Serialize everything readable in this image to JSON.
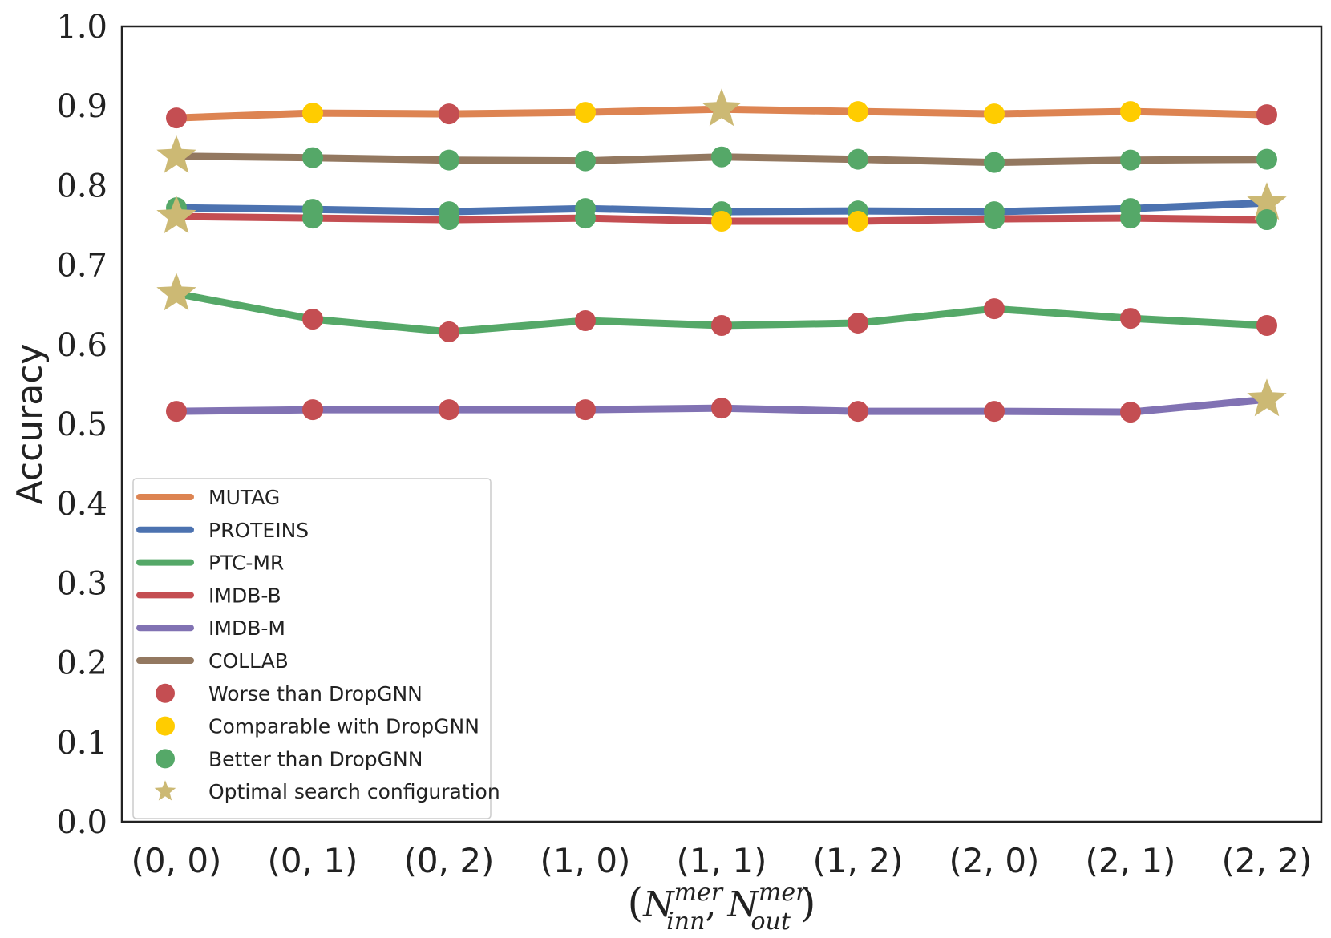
{
  "chart_data": {
    "type": "line",
    "title": "",
    "ylabel": "Accuracy",
    "xlabel": {
      "base": "N",
      "sub1": "inn",
      "sup1": "mer",
      "sub2": "out",
      "sup2": "mer",
      "text": "(N_inn^mer, N_out^mer)"
    },
    "ylim": [
      0.0,
      1.0
    ],
    "yticks": [
      "0.0",
      "0.1",
      "0.2",
      "0.3",
      "0.4",
      "0.5",
      "0.6",
      "0.7",
      "0.8",
      "0.9",
      "1.0"
    ],
    "categories": [
      "(0, 0)",
      "(0, 1)",
      "(0, 2)",
      "(1, 0)",
      "(1, 1)",
      "(1, 2)",
      "(2, 0)",
      "(2, 1)",
      "(2, 2)"
    ],
    "grid": false,
    "legend_position": "lower-left",
    "marker_legend": [
      {
        "label": "Worse than DropGNN",
        "marker": "circle",
        "color": "#c44e52"
      },
      {
        "label": "Comparable with DropGNN",
        "marker": "circle",
        "color": "#ffcc00"
      },
      {
        "label": "Better than DropGNN",
        "marker": "circle",
        "color": "#55a868"
      },
      {
        "label": "Optimal search configuration",
        "marker": "star",
        "color": "#ccb974"
      }
    ],
    "series": [
      {
        "name": "MUTAG",
        "color": "#dd8452",
        "values": [
          0.885,
          0.891,
          0.89,
          0.892,
          0.896,
          0.893,
          0.89,
          0.893,
          0.889
        ],
        "markers": [
          "worse",
          "comparable",
          "worse",
          "comparable",
          "optimal",
          "comparable",
          "comparable",
          "comparable",
          "worse"
        ]
      },
      {
        "name": "PROTEINS",
        "color": "#4c72b0",
        "values": [
          0.772,
          0.77,
          0.767,
          0.771,
          0.767,
          0.768,
          0.767,
          0.771,
          0.778
        ],
        "markers": [
          "better",
          "better",
          "better",
          "better",
          "better",
          "better",
          "better",
          "better",
          "optimal"
        ]
      },
      {
        "name": "PTC-MR",
        "color": "#55a868",
        "values": [
          0.664,
          0.632,
          0.616,
          0.63,
          0.624,
          0.627,
          0.645,
          0.633,
          0.624
        ],
        "markers": [
          "optimal",
          "worse",
          "worse",
          "worse",
          "worse",
          "worse",
          "worse",
          "worse",
          "worse"
        ]
      },
      {
        "name": "IMDB-B",
        "color": "#c44e52",
        "values": [
          0.761,
          0.759,
          0.757,
          0.759,
          0.755,
          0.755,
          0.758,
          0.759,
          0.757
        ],
        "markers": [
          "optimal",
          "better",
          "better",
          "better",
          "comparable",
          "comparable",
          "better",
          "better",
          "better"
        ]
      },
      {
        "name": "IMDB-M",
        "color": "#8172b3",
        "values": [
          0.516,
          0.518,
          0.518,
          0.518,
          0.52,
          0.516,
          0.516,
          0.515,
          0.531
        ],
        "markers": [
          "worse",
          "worse",
          "worse",
          "worse",
          "worse",
          "worse",
          "worse",
          "worse",
          "optimal"
        ]
      },
      {
        "name": "COLLAB",
        "color": "#937860",
        "values": [
          0.837,
          0.835,
          0.832,
          0.831,
          0.836,
          0.833,
          0.829,
          0.832,
          0.833
        ],
        "markers": [
          "optimal",
          "better",
          "better",
          "better",
          "better",
          "better",
          "better",
          "better",
          "better"
        ]
      }
    ]
  }
}
